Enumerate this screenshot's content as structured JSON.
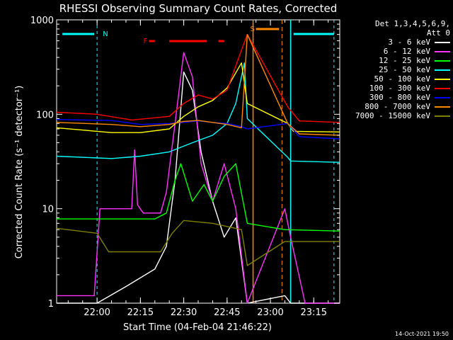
{
  "chart_data": {
    "type": "line",
    "title": "RHESSI Observing Summary Count Rates, Corrected",
    "xlabel": "Start Time (04-Feb-04 21:46:22)",
    "ylabel": "Corrected Count Rate (s⁻¹ detector⁻¹)",
    "yscale": "log",
    "ylim": [
      1,
      1000
    ],
    "xlim": [
      "21:46",
      "23:24"
    ],
    "x_ticks": [
      "22:00",
      "22:15",
      "22:30",
      "22:45",
      "23:00",
      "23:15"
    ],
    "y_ticks": [
      "1",
      "10",
      "100",
      "1000"
    ],
    "legend_header": [
      "Det 1,3,4,5,6,9,",
      "Att 0"
    ],
    "legend_position": "right",
    "series": [
      {
        "name": "3 - 6 keV",
        "color": "#ffffff",
        "x": [
          "21:46",
          "22:00",
          "22:10",
          "22:20",
          "22:24",
          "22:27",
          "22:30",
          "22:33",
          "22:36",
          "22:40",
          "22:44",
          "22:48",
          "22:52",
          "23:05",
          "23:07",
          "23:24"
        ],
        "y": [
          1,
          1,
          1.5,
          2.3,
          4,
          20,
          280,
          180,
          40,
          12,
          5,
          8,
          1,
          1.2,
          1,
          1
        ]
      },
      {
        "name": "6 - 12 keV",
        "color": "#ff33ff",
        "x": [
          "21:46",
          "21:59",
          "22:01",
          "22:12",
          "22:13",
          "22:14",
          "22:16",
          "22:22",
          "22:24",
          "22:27",
          "22:30",
          "22:33",
          "22:36",
          "22:40",
          "22:44",
          "22:48",
          "22:52",
          "23:05",
          "23:07",
          "23:12",
          "23:24"
        ],
        "y": [
          1.2,
          1.2,
          10,
          10,
          42,
          11,
          9,
          9,
          15,
          80,
          450,
          250,
          30,
          12,
          30,
          10,
          1,
          10,
          5,
          1,
          1
        ]
      },
      {
        "name": "12 - 25 keV",
        "color": "#00ff00",
        "x": [
          "21:46",
          "22:20",
          "22:24",
          "22:27",
          "22:29",
          "22:33",
          "22:37",
          "22:40",
          "22:44",
          "22:48",
          "22:52",
          "23:05",
          "23:24"
        ],
        "y": [
          7.8,
          7.8,
          9,
          20,
          30,
          12,
          18,
          12,
          22,
          30,
          7,
          6,
          5.8
        ]
      },
      {
        "name": "25 - 50 keV",
        "color": "#00ffff",
        "x": [
          "21:46",
          "22:05",
          "22:15",
          "22:25",
          "22:33",
          "22:40",
          "22:45",
          "22:48",
          "22:51",
          "22:52",
          "23:06",
          "23:07",
          "23:24"
        ],
        "y": [
          36,
          34,
          36,
          40,
          50,
          60,
          80,
          130,
          350,
          90,
          35,
          32,
          31
        ]
      },
      {
        "name": "50 - 100 keV",
        "color": "#ffff00",
        "x": [
          "21:46",
          "22:05",
          "22:15",
          "22:25",
          "22:30",
          "22:35",
          "22:40",
          "22:45",
          "22:50",
          "22:52",
          "23:06",
          "23:08",
          "23:24"
        ],
        "y": [
          72,
          64,
          64,
          70,
          95,
          120,
          140,
          190,
          350,
          130,
          80,
          66,
          65
        ]
      },
      {
        "name": "100 - 300 keV",
        "color": "#ff0000",
        "x": [
          "21:46",
          "22:00",
          "22:12",
          "22:25",
          "22:30",
          "22:35",
          "22:40",
          "22:45",
          "22:50",
          "22:52",
          "23:06",
          "23:10",
          "23:24"
        ],
        "y": [
          105,
          100,
          87,
          95,
          130,
          160,
          145,
          180,
          480,
          700,
          120,
          85,
          82
        ]
      },
      {
        "name": "300 - 800 keV",
        "color": "#0000ff",
        "x": [
          "21:46",
          "22:05",
          "22:15",
          "22:25",
          "22:30",
          "22:35",
          "22:40",
          "22:45",
          "22:50",
          "22:52",
          "23:06",
          "23:10",
          "23:24"
        ],
        "y": [
          88,
          86,
          78,
          80,
          82,
          85,
          82,
          80,
          74,
          70,
          80,
          58,
          55
        ]
      },
      {
        "name": "800 - 7000 keV",
        "color": "#ff8800",
        "x": [
          "21:46",
          "22:05",
          "22:15",
          "22:25",
          "22:30",
          "22:35",
          "22:40",
          "22:45",
          "22:50",
          "22:52",
          "23:06",
          "23:10",
          "23:24"
        ],
        "y": [
          82,
          78,
          74,
          78,
          84,
          86,
          82,
          78,
          72,
          700,
          80,
          62,
          60
        ]
      },
      {
        "name": "7000 - 15000 keV",
        "color": "#808000",
        "x": [
          "21:46",
          "22:00",
          "22:04",
          "22:22",
          "22:26",
          "22:30",
          "22:40",
          "22:50",
          "22:52",
          "23:05",
          "23:24"
        ],
        "y": [
          6.2,
          5.5,
          3.5,
          3.5,
          5.5,
          7.5,
          7,
          6,
          2.5,
          4.5,
          4.5
        ]
      }
    ],
    "annotations": [
      {
        "text": "N",
        "color": "#00ffff"
      },
      {
        "text": "F",
        "color": "#ff0000"
      },
      {
        "text": "S",
        "color": "#ff8800"
      }
    ]
  },
  "timestamp": "14-Oct-2021 19:50"
}
